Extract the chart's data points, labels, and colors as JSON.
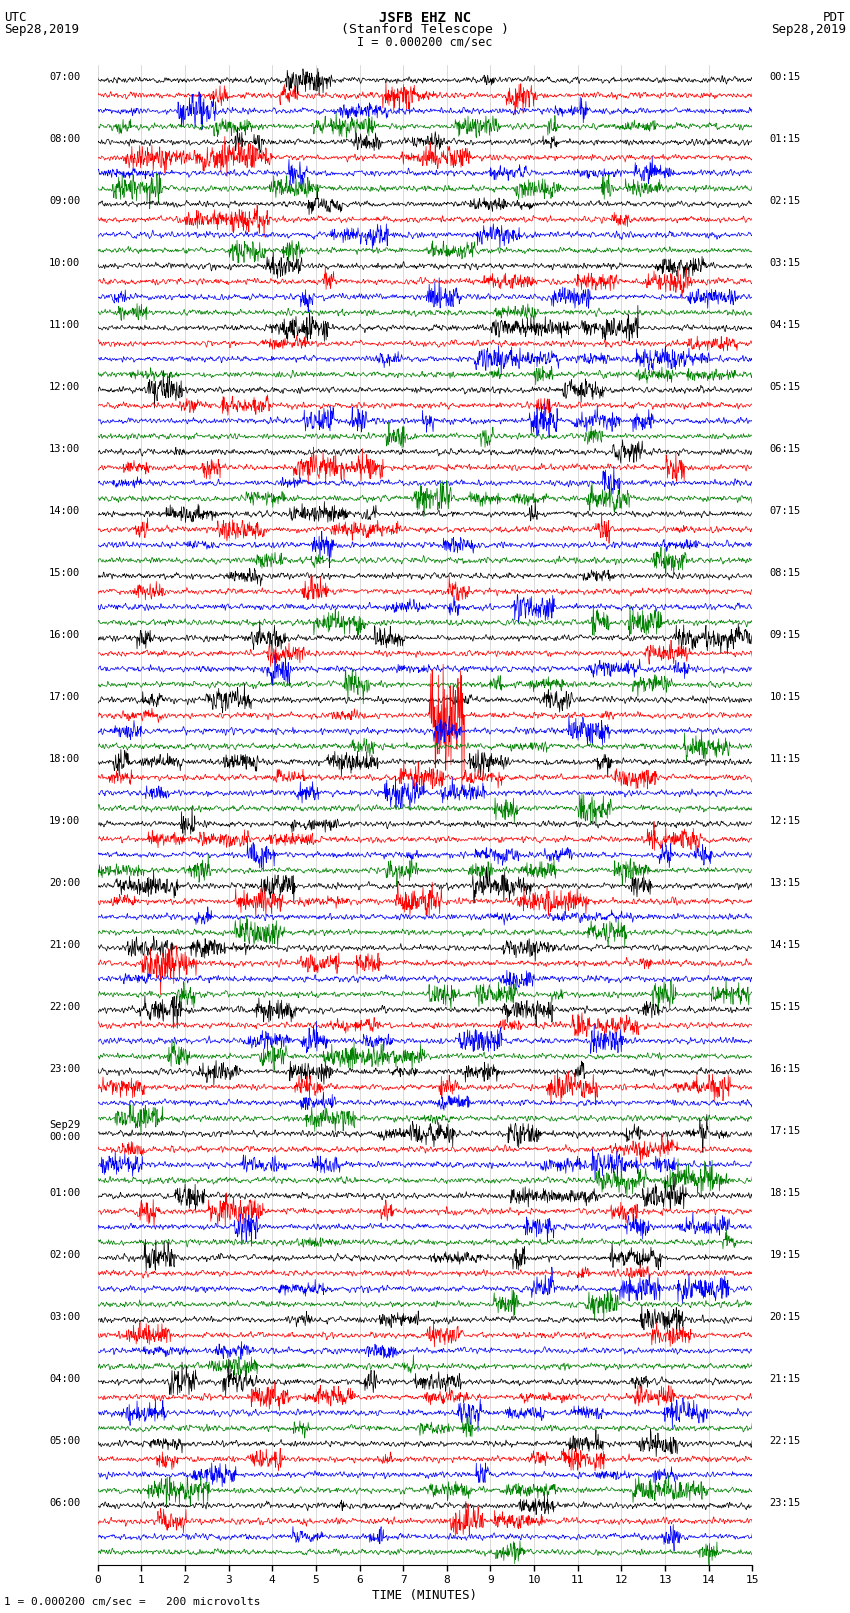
{
  "title_line1": "JSFB EHZ NC",
  "title_line2": "(Stanford Telescope )",
  "scale_label": "I = 0.000200 cm/sec",
  "utc_label": "UTC",
  "utc_date": "Sep28,2019",
  "pdt_label": "PDT",
  "pdt_date": "Sep28,2019",
  "xlabel": "TIME (MINUTES)",
  "footer": "1 = 0.000200 cm/sec =   200 microvolts",
  "bg_color": "#ffffff",
  "trace_colors": [
    "black",
    "red",
    "blue",
    "green"
  ],
  "left_times_utc": [
    "07:00",
    "08:00",
    "09:00",
    "10:00",
    "11:00",
    "12:00",
    "13:00",
    "14:00",
    "15:00",
    "16:00",
    "17:00",
    "18:00",
    "19:00",
    "20:00",
    "21:00",
    "22:00",
    "23:00",
    "Sep29\n00:00",
    "01:00",
    "02:00",
    "03:00",
    "04:00",
    "05:00",
    "06:00"
  ],
  "right_times_pdt": [
    "00:15",
    "01:15",
    "02:15",
    "03:15",
    "04:15",
    "05:15",
    "06:15",
    "07:15",
    "08:15",
    "09:15",
    "10:15",
    "11:15",
    "12:15",
    "13:15",
    "14:15",
    "15:15",
    "16:15",
    "17:15",
    "18:15",
    "19:15",
    "20:15",
    "21:15",
    "22:15",
    "23:15"
  ],
  "xlim": [
    0,
    15
  ],
  "xticks": [
    0,
    1,
    2,
    3,
    4,
    5,
    6,
    7,
    8,
    9,
    10,
    11,
    12,
    13,
    14,
    15
  ],
  "num_hour_blocks": 24,
  "traces_per_block": 4,
  "noise_seed": 42
}
